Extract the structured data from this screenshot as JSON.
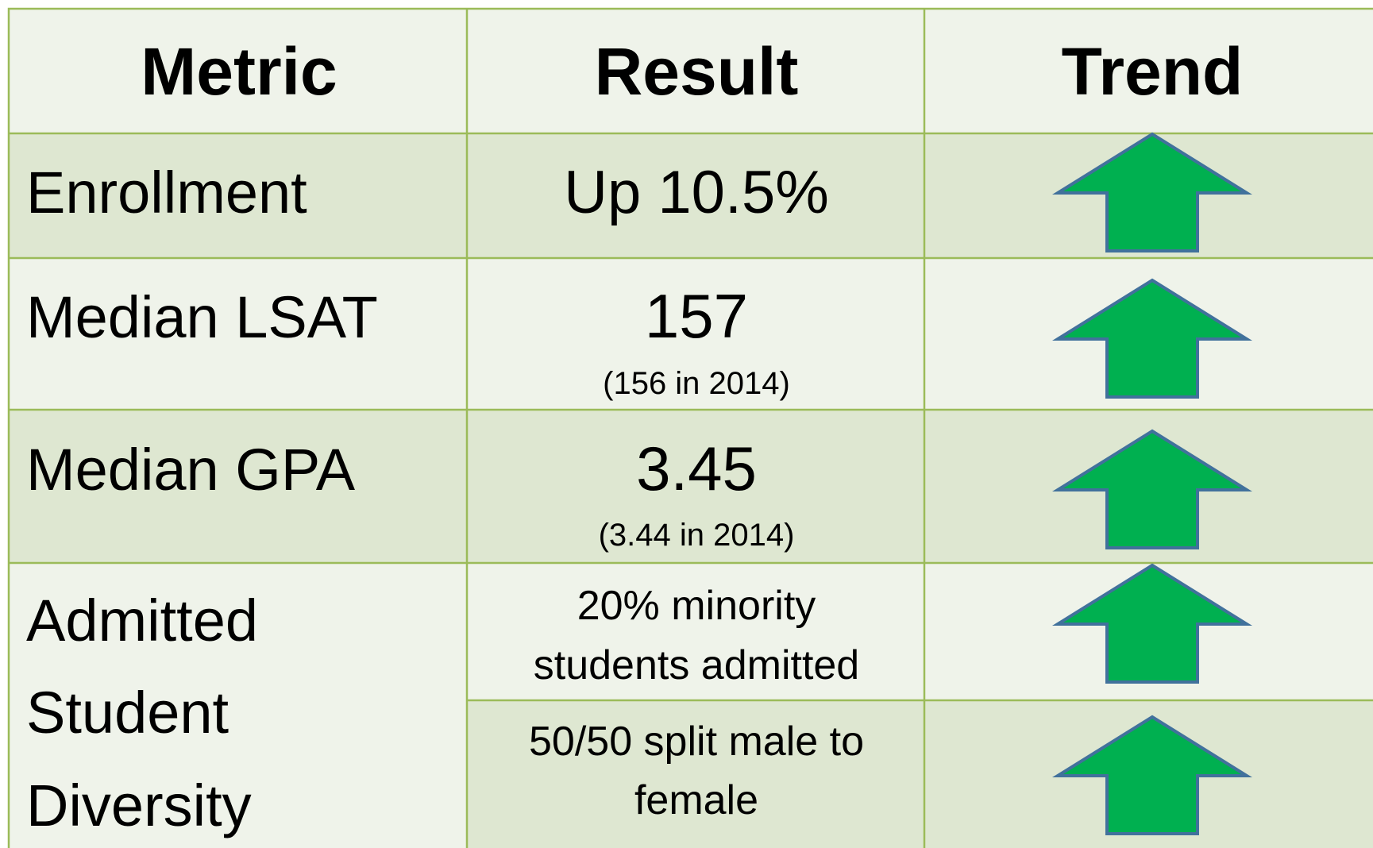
{
  "table": {
    "header": [
      "Metric",
      "Result",
      "Trend"
    ],
    "rows": [
      {
        "metric": [
          "Enrollment"
        ],
        "results": [
          {
            "lines": [
              "Up 10.5%"
            ]
          }
        ]
      },
      {
        "metric": [
          "Median LSAT"
        ],
        "results": [
          {
            "lines": [
              "157"
            ],
            "note": "(156 in 2014)"
          }
        ]
      },
      {
        "metric": [
          "Median GPA"
        ],
        "results": [
          {
            "lines": [
              "3.45"
            ],
            "note": "(3.44 in 2014)"
          }
        ]
      },
      {
        "metric": [
          "Admitted",
          "Student",
          "Diversity"
        ],
        "results": [
          {
            "lines": [
              "20% minority",
              "students admitted"
            ]
          },
          {
            "lines": [
              "50/50 split male to",
              "female"
            ]
          }
        ]
      }
    ]
  }
}
